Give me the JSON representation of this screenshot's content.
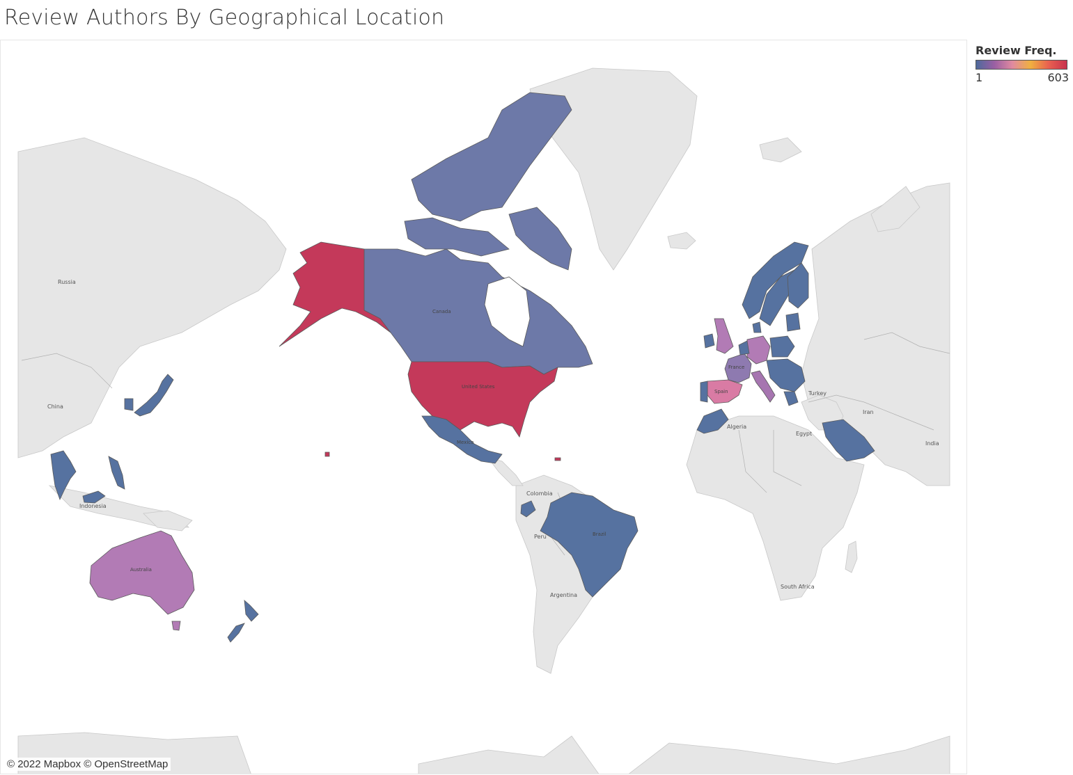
{
  "title": "Review Authors By Geographical Location",
  "legend": {
    "title": "Review Freq.",
    "min_label": "1",
    "max_label": "603",
    "scale_colors": [
      "#4e6a9c",
      "#9a5fa3",
      "#e08aa0",
      "#f0b040",
      "#e86050",
      "#c8334e"
    ]
  },
  "attribution": "© 2022 Mapbox © OpenStreetMap",
  "colors": {
    "land_gray": "#e6e6e6",
    "border_gray": "#a8a8a8",
    "ocean": "#ffffff",
    "high": "#c4395a",
    "low_blue": "#5672a0",
    "purple_blue": "#6d79a8",
    "orchid": "#b27bb5",
    "pink": "#d97ba4"
  },
  "map_labels": {
    "russia": "Russia",
    "china": "China",
    "indonesia": "Indonesia",
    "canada": "Canada",
    "united_states": "United States",
    "mexico": "Mexico",
    "colombia": "Colombia",
    "peru": "Peru",
    "brazil": "Brazil",
    "argentina": "Argentina",
    "australia": "Australia",
    "algeria": "Algeria",
    "egypt": "Egypt",
    "turkey": "Turkey",
    "iran": "Iran",
    "india": "India",
    "south_africa": "South Africa",
    "france": "France",
    "spain": "Spain"
  },
  "countries": [
    {
      "name": "United States",
      "freq": 603
    },
    {
      "name": "Canada",
      "freq": 80
    },
    {
      "name": "Australia",
      "freq": 200
    },
    {
      "name": "United Kingdom",
      "freq": 190
    },
    {
      "name": "Germany",
      "freq": 180
    },
    {
      "name": "Spain",
      "freq": 240
    },
    {
      "name": "France",
      "freq": 100
    },
    {
      "name": "Italy",
      "freq": 150
    },
    {
      "name": "Mexico",
      "freq": 20
    },
    {
      "name": "Brazil",
      "freq": 10
    },
    {
      "name": "Saudi Arabia",
      "freq": 10
    },
    {
      "name": "New Zealand",
      "freq": 10
    }
  ]
}
